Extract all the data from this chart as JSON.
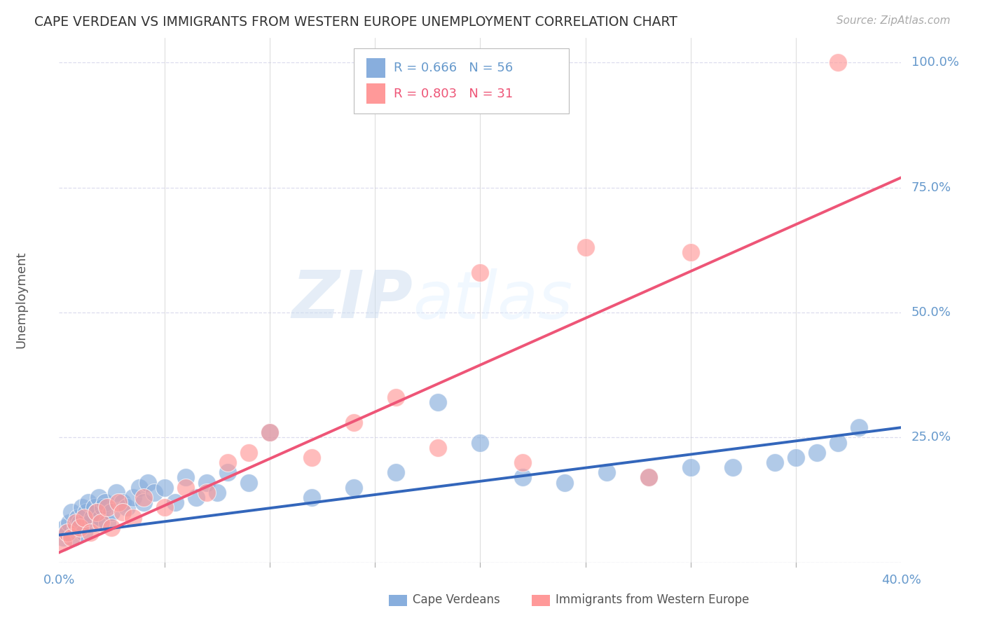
{
  "title": "CAPE VERDEAN VS IMMIGRANTS FROM WESTERN EUROPE UNEMPLOYMENT CORRELATION CHART",
  "source": "Source: ZipAtlas.com",
  "ylabel": "Unemployment",
  "x_min": 0.0,
  "x_max": 0.4,
  "y_min": 0.0,
  "y_max": 1.05,
  "right_yticks": [
    0.0,
    0.25,
    0.5,
    0.75,
    1.0
  ],
  "right_yticklabels": [
    "",
    "25.0%",
    "50.0%",
    "75.0%",
    "100.0%"
  ],
  "x_ticks_minor": [
    0.05,
    0.1,
    0.15,
    0.2,
    0.25,
    0.3,
    0.35
  ],
  "x_ticks_labeled": [
    0.0,
    0.4
  ],
  "x_ticklabels": [
    "0.0%",
    "40.0%"
  ],
  "blue_color": "#88AEDD",
  "pink_color": "#FF9999",
  "blue_line_color": "#3366BB",
  "pink_line_color": "#EE5577",
  "legend_blue_label": "R = 0.666   N = 56",
  "legend_pink_label": "R = 0.803   N = 31",
  "legend_label_blue": "Cape Verdeans",
  "legend_label_pink": "Immigrants from Western Europe",
  "watermark": "ZIPatlas",
  "axis_color": "#6699CC",
  "grid_color": "#DDDDEE",
  "blue_trend_x": [
    0.0,
    0.4
  ],
  "blue_trend_y": [
    0.055,
    0.27
  ],
  "pink_trend_x": [
    0.0,
    0.4
  ],
  "pink_trend_y": [
    0.02,
    0.77
  ],
  "blue_scatter_x": [
    0.002,
    0.003,
    0.004,
    0.005,
    0.006,
    0.007,
    0.008,
    0.009,
    0.01,
    0.011,
    0.012,
    0.013,
    0.014,
    0.015,
    0.016,
    0.017,
    0.018,
    0.019,
    0.02,
    0.021,
    0.022,
    0.023,
    0.025,
    0.027,
    0.03,
    0.032,
    0.035,
    0.038,
    0.04,
    0.042,
    0.045,
    0.05,
    0.055,
    0.06,
    0.065,
    0.07,
    0.075,
    0.08,
    0.09,
    0.1,
    0.12,
    0.14,
    0.16,
    0.18,
    0.2,
    0.22,
    0.24,
    0.26,
    0.28,
    0.3,
    0.32,
    0.34,
    0.35,
    0.36,
    0.37,
    0.38
  ],
  "blue_scatter_y": [
    0.05,
    0.07,
    0.06,
    0.08,
    0.1,
    0.05,
    0.07,
    0.09,
    0.08,
    0.11,
    0.06,
    0.1,
    0.12,
    0.08,
    0.09,
    0.11,
    0.1,
    0.13,
    0.09,
    0.11,
    0.12,
    0.08,
    0.1,
    0.14,
    0.12,
    0.11,
    0.13,
    0.15,
    0.12,
    0.16,
    0.14,
    0.15,
    0.12,
    0.17,
    0.13,
    0.16,
    0.14,
    0.18,
    0.16,
    0.26,
    0.13,
    0.15,
    0.18,
    0.32,
    0.24,
    0.17,
    0.16,
    0.18,
    0.17,
    0.19,
    0.19,
    0.2,
    0.21,
    0.22,
    0.24,
    0.27
  ],
  "pink_scatter_x": [
    0.002,
    0.004,
    0.006,
    0.008,
    0.01,
    0.012,
    0.015,
    0.018,
    0.02,
    0.023,
    0.025,
    0.028,
    0.03,
    0.035,
    0.04,
    0.05,
    0.06,
    0.07,
    0.08,
    0.09,
    0.1,
    0.12,
    0.14,
    0.16,
    0.18,
    0.2,
    0.22,
    0.25,
    0.28,
    0.3,
    0.37
  ],
  "pink_scatter_y": [
    0.04,
    0.06,
    0.05,
    0.08,
    0.07,
    0.09,
    0.06,
    0.1,
    0.08,
    0.11,
    0.07,
    0.12,
    0.1,
    0.09,
    0.13,
    0.11,
    0.15,
    0.14,
    0.2,
    0.22,
    0.26,
    0.21,
    0.28,
    0.33,
    0.23,
    0.58,
    0.2,
    0.63,
    0.17,
    0.62,
    1.0
  ]
}
